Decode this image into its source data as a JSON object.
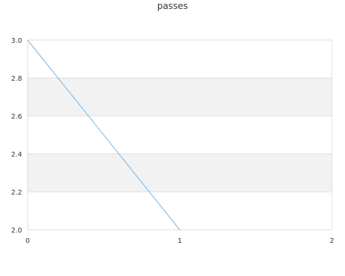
{
  "chart_data": {
    "type": "line",
    "title": "passes",
    "xlabel": "",
    "ylabel": "",
    "x": [
      0,
      1
    ],
    "series": [
      {
        "values": [
          3.0,
          2.0
        ],
        "color": "#6ab0ea"
      }
    ],
    "xlim": [
      0,
      2
    ],
    "ylim": [
      2.0,
      3.0
    ],
    "x_ticks": [
      "0",
      "1",
      "2"
    ],
    "y_ticks": [
      "2.0",
      "2.2",
      "2.4",
      "2.6",
      "2.8",
      "3.0"
    ],
    "grid": true,
    "band_color": "#f2f2f2",
    "grid_color": "#dcdcdc"
  }
}
